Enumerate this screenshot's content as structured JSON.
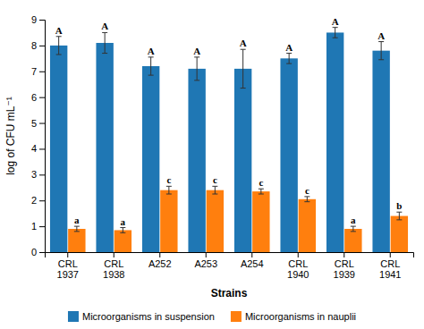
{
  "chart_data": {
    "type": "bar",
    "categories": [
      "CRL\n1937",
      "CRL\n1938",
      "A252",
      "A253",
      "A254",
      "CRL\n1940",
      "CRL\n1939",
      "CRL\n1941"
    ],
    "series": [
      {
        "name": "Microorganisms in suspension",
        "values": [
          8.0,
          8.1,
          7.2,
          7.1,
          7.1,
          7.5,
          8.5,
          7.8
        ],
        "errors": [
          0.35,
          0.4,
          0.35,
          0.45,
          0.75,
          0.2,
          0.2,
          0.35
        ],
        "letters": [
          "A",
          "A",
          "A",
          "A",
          "A",
          "A",
          "A",
          "A"
        ]
      },
      {
        "name": "Microorganisms in nauplii",
        "values": [
          0.9,
          0.85,
          2.4,
          2.4,
          2.35,
          2.05,
          0.9,
          1.4
        ],
        "errors": [
          0.1,
          0.1,
          0.15,
          0.15,
          0.1,
          0.1,
          0.1,
          0.15
        ],
        "letters": [
          "a",
          "a",
          "c",
          "c",
          "c",
          "c",
          "a",
          "b"
        ]
      }
    ],
    "xlabel": "Strains",
    "ylabel": "log of CFU mL⁻¹",
    "ylim": [
      0,
      9
    ],
    "yticks": [
      0,
      1,
      2,
      3,
      4,
      5,
      6,
      7,
      8,
      9
    ],
    "grid": false,
    "legend": "bottom"
  }
}
